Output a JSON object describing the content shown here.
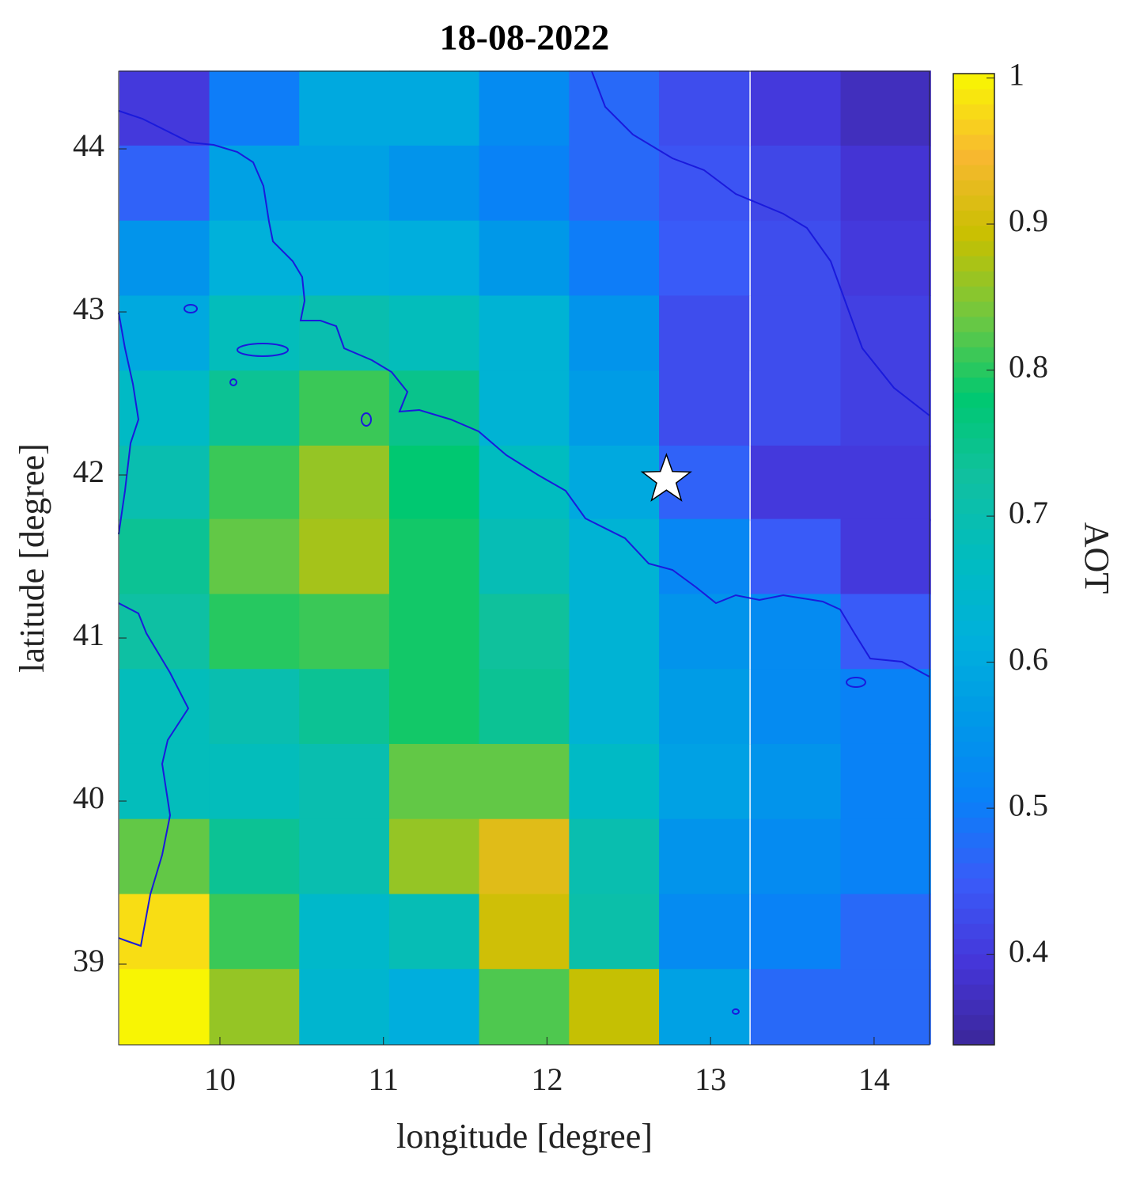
{
  "chart_data": {
    "type": "heatmap",
    "title": "18-08-2022",
    "x_label": "longitude [degree]",
    "y_label": "latitude [degree]",
    "colorbar_label": "AOT",
    "x": [
      9.66,
      10.21,
      10.76,
      11.31,
      11.86,
      12.41,
      12.96,
      13.52,
      14.07
    ],
    "y": [
      44.25,
      43.79,
      43.33,
      42.87,
      42.41,
      41.95,
      41.5,
      41.04,
      40.58,
      40.12,
      39.66,
      39.2,
      38.74
    ],
    "z": [
      [
        0.4,
        0.5,
        0.6,
        0.6,
        0.53,
        0.47,
        0.43,
        0.4,
        0.37
      ],
      [
        0.46,
        0.58,
        0.58,
        0.55,
        0.51,
        0.47,
        0.44,
        0.42,
        0.39
      ],
      [
        0.55,
        0.62,
        0.62,
        0.61,
        0.56,
        0.5,
        0.45,
        0.43,
        0.4
      ],
      [
        0.6,
        0.68,
        0.7,
        0.68,
        0.63,
        0.55,
        0.43,
        0.43,
        0.41
      ],
      [
        0.66,
        0.74,
        0.81,
        0.75,
        0.63,
        0.57,
        0.43,
        0.43,
        0.41
      ],
      [
        0.7,
        0.81,
        0.86,
        0.78,
        0.67,
        0.6,
        0.46,
        0.4,
        0.4
      ],
      [
        0.74,
        0.83,
        0.87,
        0.79,
        0.69,
        0.63,
        0.52,
        0.45,
        0.4
      ],
      [
        0.72,
        0.8,
        0.81,
        0.79,
        0.73,
        0.63,
        0.55,
        0.53,
        0.45
      ],
      [
        0.68,
        0.7,
        0.74,
        0.79,
        0.74,
        0.63,
        0.57,
        0.53,
        0.51
      ],
      [
        0.68,
        0.68,
        0.7,
        0.83,
        0.83,
        0.66,
        0.58,
        0.55,
        0.51
      ],
      [
        0.83,
        0.74,
        0.7,
        0.86,
        0.92,
        0.7,
        0.55,
        0.53,
        0.51
      ],
      [
        0.98,
        0.81,
        0.65,
        0.69,
        0.9,
        0.71,
        0.53,
        0.51,
        0.47
      ],
      [
        1.0,
        0.86,
        0.64,
        0.61,
        0.82,
        0.89,
        0.58,
        0.47,
        0.47
      ]
    ],
    "xlim": [
      9.381,
      14.339
    ],
    "ylim": [
      38.505,
      44.476
    ],
    "xticks": [
      10,
      11,
      12,
      13,
      14
    ],
    "yticks": [
      39,
      40,
      41,
      42,
      43,
      44
    ],
    "clim": [
      0.338,
      1.003
    ],
    "cticks": [
      0.4,
      0.5,
      0.6,
      0.7,
      0.8,
      0.9,
      1
    ],
    "colormap": [
      "#3b2799",
      "#4535d8",
      "#3a5af8",
      "#0a80f8",
      "#0098e8",
      "#00b0dc",
      "#00bcc0",
      "#10c0a0",
      "#00c870",
      "#70c840",
      "#c8c000",
      "#f8b830",
      "#f8f800"
    ],
    "marker": {
      "x": 12.73,
      "y": 41.97
    }
  }
}
